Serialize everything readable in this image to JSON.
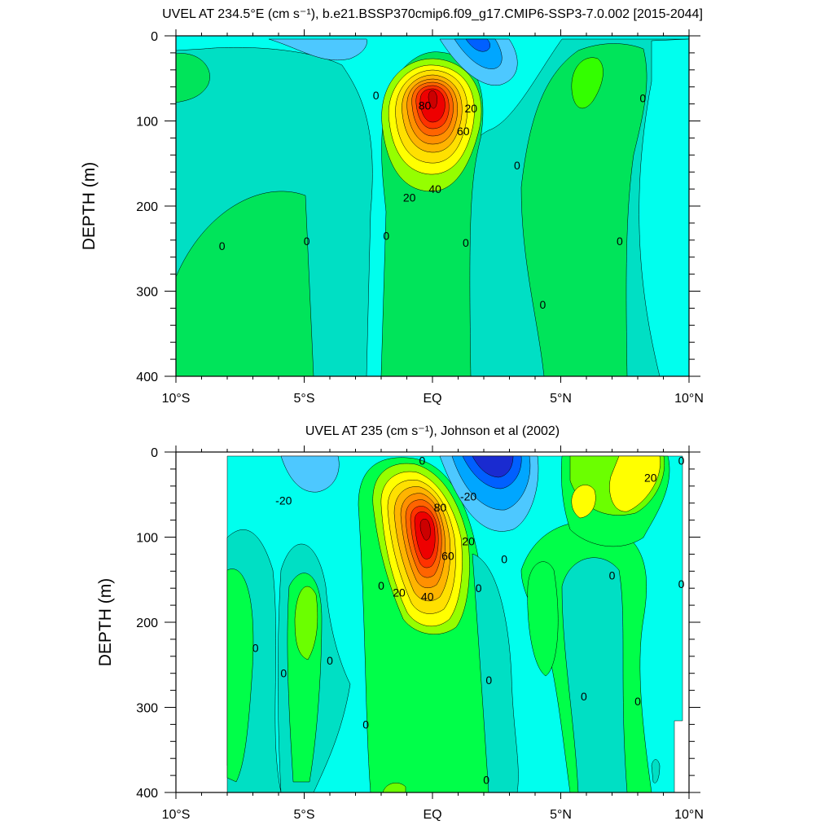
{
  "chart_data": [
    {
      "type": "heatmap",
      "title": "UVEL AT 234.5°E (cm s⁻¹), b.e21.BSSP370cmip6.f09_g17.CMIP6-SSP3-7.0.002 [2015-2044]",
      "xlabel": "",
      "ylabel": "DEPTH (m)",
      "x_ticks": [
        "10°S",
        "5°S",
        "EQ",
        "5°N",
        "10°N"
      ],
      "y_ticks": [
        "0",
        "100",
        "200",
        "300",
        "400"
      ],
      "xlim": [
        -10,
        10
      ],
      "ylim": [
        400,
        0
      ],
      "contour_interval": 10,
      "features": [
        {
          "name": "core",
          "x": 0,
          "y": 105,
          "value": 90
        },
        {
          "name": "surface-min",
          "x": 2,
          "y": 15,
          "value": -30
        }
      ],
      "contour_labels": [
        {
          "x": -2.2,
          "y": 70,
          "text": "0"
        },
        {
          "x": -0.3,
          "y": 82,
          "text": "80"
        },
        {
          "x": 1.5,
          "y": 85,
          "text": "20"
        },
        {
          "x": 1.2,
          "y": 112,
          "text": "60"
        },
        {
          "x": 0.1,
          "y": 180,
          "text": "40"
        },
        {
          "x": -0.9,
          "y": 190,
          "text": "20"
        },
        {
          "x": 3.3,
          "y": 152,
          "text": "0"
        },
        {
          "x": 8.2,
          "y": 73,
          "text": "0"
        },
        {
          "x": -8.2,
          "y": 247,
          "text": "0"
        },
        {
          "x": -4.9,
          "y": 241,
          "text": "0"
        },
        {
          "x": -1.8,
          "y": 235,
          "text": "0"
        },
        {
          "x": 1.3,
          "y": 243,
          "text": "0"
        },
        {
          "x": 7.3,
          "y": 241,
          "text": "0"
        },
        {
          "x": 4.3,
          "y": 316,
          "text": "0"
        }
      ]
    },
    {
      "type": "heatmap",
      "title": "UVEL AT 235 (cm s⁻¹), Johnson et al (2002)",
      "xlabel": "",
      "ylabel": "DEPTH (m)",
      "x_ticks": [
        "10°S",
        "5°S",
        "EQ",
        "5°N",
        "10°N"
      ],
      "y_ticks": [
        "0",
        "100",
        "200",
        "300",
        "400"
      ],
      "xlim": [
        -10,
        10
      ],
      "ylim": [
        400,
        0
      ],
      "contour_interval": 10,
      "features": [
        {
          "name": "core",
          "x": -0.2,
          "y": 85,
          "value": 90
        },
        {
          "name": "surface-min",
          "x": 2.5,
          "y": 15,
          "value": -50
        }
      ],
      "contour_labels": [
        {
          "x": -0.4,
          "y": 10,
          "text": "0"
        },
        {
          "x": -5.8,
          "y": 57,
          "text": "-20"
        },
        {
          "x": 1.4,
          "y": 52,
          "text": "-20"
        },
        {
          "x": 0.3,
          "y": 65,
          "text": "80"
        },
        {
          "x": 1.4,
          "y": 105,
          "text": "20"
        },
        {
          "x": 0.6,
          "y": 122,
          "text": "60"
        },
        {
          "x": -1.3,
          "y": 165,
          "text": "20"
        },
        {
          "x": -0.2,
          "y": 170,
          "text": "40"
        },
        {
          "x": 8.5,
          "y": 30,
          "text": "20"
        },
        {
          "x": 9.7,
          "y": 10,
          "text": "0"
        },
        {
          "x": 2.8,
          "y": 126,
          "text": "0"
        },
        {
          "x": 7.0,
          "y": 145,
          "text": "0"
        },
        {
          "x": -2.0,
          "y": 157,
          "text": "0"
        },
        {
          "x": 1.8,
          "y": 160,
          "text": "0"
        },
        {
          "x": 9.7,
          "y": 155,
          "text": "0"
        },
        {
          "x": -6.9,
          "y": 230,
          "text": "0"
        },
        {
          "x": -4.0,
          "y": 245,
          "text": "0"
        },
        {
          "x": -5.8,
          "y": 260,
          "text": "0"
        },
        {
          "x": 2.2,
          "y": 268,
          "text": "0"
        },
        {
          "x": 5.9,
          "y": 287,
          "text": "0"
        },
        {
          "x": 8.0,
          "y": 293,
          "text": "0"
        },
        {
          "x": -2.6,
          "y": 320,
          "text": "0"
        },
        {
          "x": 2.1,
          "y": 385,
          "text": "0"
        }
      ]
    }
  ]
}
